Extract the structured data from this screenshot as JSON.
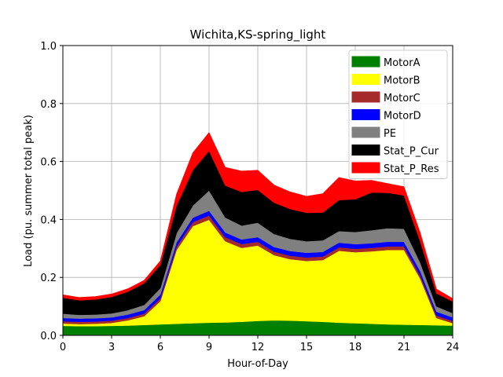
{
  "chart_data": {
    "type": "area",
    "stacked": true,
    "title": "Wichita,KS-spring_light",
    "xlabel": "Hour-of-Day",
    "ylabel": "Load (pu. summer total peak)",
    "xlim": [
      0,
      24
    ],
    "ylim": [
      0,
      1.0
    ],
    "xticks": [
      0,
      3,
      6,
      9,
      12,
      15,
      18,
      21,
      24
    ],
    "yticks": [
      0.0,
      0.2,
      0.4,
      0.6,
      0.8,
      1.0
    ],
    "xtick_labels": [
      "0",
      "3",
      "6",
      "9",
      "12",
      "15",
      "18",
      "21",
      "24"
    ],
    "ytick_labels": [
      "0.0",
      "0.2",
      "0.4",
      "0.6",
      "0.8",
      "1.0"
    ],
    "grid": true,
    "legend_position": "top-right",
    "x": [
      0,
      1,
      2,
      3,
      4,
      5,
      6,
      7,
      8,
      9,
      10,
      11,
      12,
      13,
      14,
      15,
      16,
      17,
      18,
      19,
      20,
      21,
      22,
      23,
      24
    ],
    "series": [
      {
        "name": "MotorA",
        "color": "#008000",
        "values": [
          0.033,
          0.032,
          0.032,
          0.033,
          0.034,
          0.036,
          0.038,
          0.04,
          0.042,
          0.044,
          0.045,
          0.047,
          0.05,
          0.052,
          0.051,
          0.049,
          0.047,
          0.044,
          0.042,
          0.04,
          0.038,
          0.037,
          0.036,
          0.035,
          0.034
        ]
      },
      {
        "name": "MotorB",
        "color": "#ffff00",
        "values": [
          0.008,
          0.007,
          0.008,
          0.01,
          0.018,
          0.03,
          0.08,
          0.255,
          0.335,
          0.355,
          0.28,
          0.255,
          0.26,
          0.225,
          0.212,
          0.208,
          0.213,
          0.248,
          0.245,
          0.25,
          0.257,
          0.258,
          0.16,
          0.025,
          0.008
        ]
      },
      {
        "name": "MotorC",
        "color": "#a52a2a",
        "values": [
          0.008,
          0.008,
          0.008,
          0.008,
          0.008,
          0.009,
          0.01,
          0.012,
          0.014,
          0.015,
          0.014,
          0.013,
          0.013,
          0.012,
          0.012,
          0.012,
          0.012,
          0.012,
          0.012,
          0.012,
          0.012,
          0.012,
          0.011,
          0.009,
          0.008
        ]
      },
      {
        "name": "MotorD",
        "color": "#0000ff",
        "values": [
          0.011,
          0.011,
          0.011,
          0.011,
          0.012,
          0.012,
          0.013,
          0.014,
          0.015,
          0.016,
          0.016,
          0.016,
          0.016,
          0.016,
          0.016,
          0.016,
          0.016,
          0.016,
          0.016,
          0.016,
          0.016,
          0.016,
          0.015,
          0.013,
          0.012
        ]
      },
      {
        "name": "PE",
        "color": "#808080",
        "values": [
          0.015,
          0.013,
          0.013,
          0.014,
          0.015,
          0.018,
          0.022,
          0.032,
          0.042,
          0.07,
          0.052,
          0.048,
          0.05,
          0.045,
          0.042,
          0.04,
          0.04,
          0.04,
          0.042,
          0.045,
          0.047,
          0.045,
          0.03,
          0.018,
          0.015
        ]
      },
      {
        "name": "Stat_P_Cur",
        "color": "#000000",
        "values": [
          0.055,
          0.05,
          0.052,
          0.057,
          0.064,
          0.075,
          0.08,
          0.095,
          0.122,
          0.137,
          0.11,
          0.116,
          0.113,
          0.108,
          0.103,
          0.098,
          0.096,
          0.107,
          0.113,
          0.13,
          0.122,
          0.115,
          0.072,
          0.045,
          0.04
        ]
      },
      {
        "name": "Stat_P_Res",
        "color": "#ff0000",
        "values": [
          0.01,
          0.01,
          0.01,
          0.01,
          0.01,
          0.01,
          0.014,
          0.04,
          0.06,
          0.063,
          0.063,
          0.072,
          0.068,
          0.061,
          0.059,
          0.057,
          0.065,
          0.078,
          0.063,
          0.042,
          0.032,
          0.03,
          0.03,
          0.015,
          0.01
        ]
      }
    ]
  }
}
